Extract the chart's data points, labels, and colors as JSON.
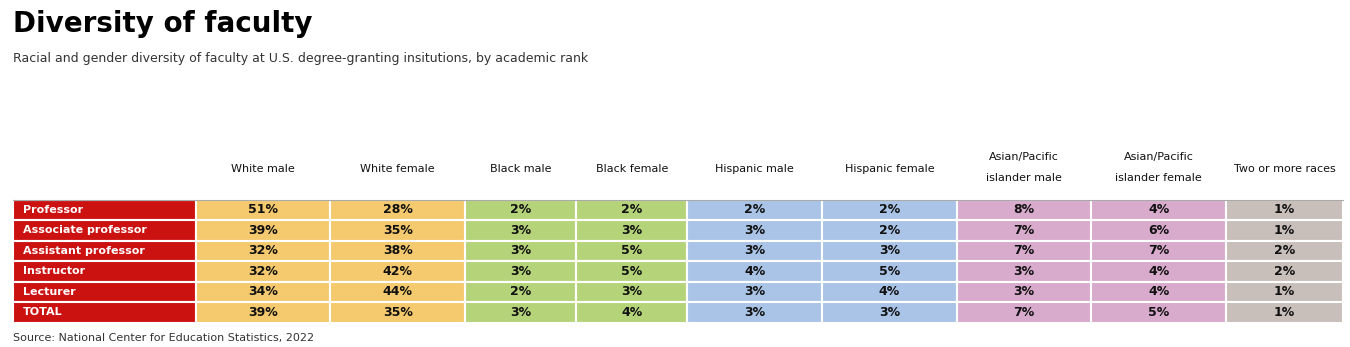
{
  "title": "Diversity of faculty",
  "subtitle": "Racial and gender diversity of faculty at U.S. degree-granting insitutions, by academic rank",
  "source": "Source: National Center for Education Statistics, 2022",
  "col_headers_line1": [
    "White male",
    "White female",
    "Black male",
    "Black female",
    "Hispanic male",
    "Hispanic female",
    "Asian/Pacific",
    "Asian/Pacific",
    "Two or more races"
  ],
  "col_headers_line2": [
    "",
    "",
    "",
    "",
    "",
    "",
    "islander male",
    "islander female",
    ""
  ],
  "rows": [
    "Professor",
    "Associate professor",
    "Assistant professor",
    "Instructor",
    "Lecturer",
    "TOTAL"
  ],
  "data": [
    [
      "51%",
      "28%",
      "2%",
      "2%",
      "2%",
      "2%",
      "8%",
      "4%",
      "1%"
    ],
    [
      "39%",
      "35%",
      "3%",
      "3%",
      "3%",
      "2%",
      "7%",
      "6%",
      "1%"
    ],
    [
      "32%",
      "38%",
      "3%",
      "5%",
      "3%",
      "3%",
      "7%",
      "7%",
      "2%"
    ],
    [
      "32%",
      "42%",
      "3%",
      "5%",
      "4%",
      "5%",
      "3%",
      "4%",
      "2%"
    ],
    [
      "34%",
      "44%",
      "2%",
      "3%",
      "3%",
      "4%",
      "3%",
      "4%",
      "1%"
    ],
    [
      "39%",
      "35%",
      "3%",
      "4%",
      "3%",
      "3%",
      "7%",
      "5%",
      "1%"
    ]
  ],
  "row_label_bg": "#cc1111",
  "row_label_fg": "#ffffff",
  "col_colors": [
    "#f5c96e",
    "#f5c96e",
    "#b5d47a",
    "#b5d47a",
    "#aac4e8",
    "#aac4e8",
    "#d8aacc",
    "#d8aacc",
    "#c8bfbb"
  ],
  "bg_color": "#ffffff",
  "title_fontsize": 20,
  "subtitle_fontsize": 9,
  "source_fontsize": 8,
  "header_fontsize": 8,
  "cell_fontsize": 9,
  "row_label_fontsize": 8
}
